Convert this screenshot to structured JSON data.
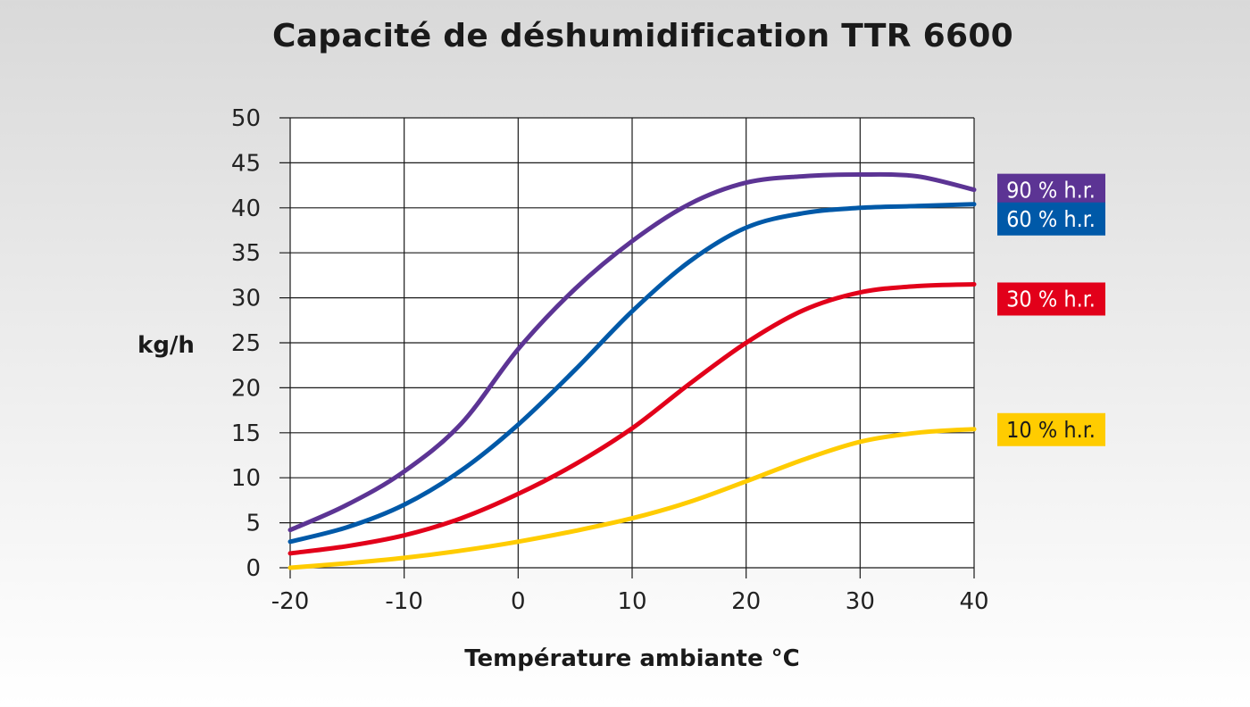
{
  "chart_data": {
    "type": "line",
    "title": "Capacité de déshumidification TTR 6600",
    "xlabel": "Température ambiante °C",
    "ylabel": "kg/h",
    "xlim": [
      -20,
      40
    ],
    "ylim": [
      0,
      50
    ],
    "x_ticks": [
      "-20",
      "-10",
      "0",
      "10",
      "20",
      "30",
      "40"
    ],
    "y_ticks": [
      "0",
      "5",
      "10",
      "15",
      "20",
      "25",
      "30",
      "35",
      "40",
      "45",
      "50"
    ],
    "grid": true,
    "legend_position": "right",
    "series": [
      {
        "name": "90 % h.r.",
        "color": "#5c3494",
        "x": [
          -20,
          -15,
          -10,
          -5,
          0,
          5,
          10,
          15,
          20,
          25,
          30,
          35,
          40
        ],
        "y": [
          4.2,
          7,
          10.7,
          16,
          24.3,
          31,
          36.3,
          40.4,
          42.8,
          43.5,
          43.7,
          43.5,
          42
        ]
      },
      {
        "name": "60 % h.r.",
        "color": "#0059a8",
        "x": [
          -20,
          -15,
          -10,
          -5,
          0,
          5,
          10,
          15,
          20,
          25,
          30,
          35,
          40
        ],
        "y": [
          2.9,
          4.5,
          7,
          10.8,
          15.9,
          22,
          28.5,
          34,
          37.8,
          39.4,
          40,
          40.2,
          40.4
        ]
      },
      {
        "name": "30 % h.r.",
        "color": "#e2001a",
        "x": [
          -20,
          -15,
          -10,
          -5,
          0,
          5,
          10,
          15,
          20,
          25,
          30,
          35,
          40
        ],
        "y": [
          1.6,
          2.4,
          3.6,
          5.5,
          8.2,
          11.5,
          15.5,
          20.4,
          25,
          28.6,
          30.6,
          31.3,
          31.5
        ]
      },
      {
        "name": "10 % h.r.",
        "color": "#ffcc00",
        "x": [
          -20,
          -15,
          -10,
          -5,
          0,
          5,
          10,
          15,
          20,
          25,
          30,
          35,
          40
        ],
        "y": [
          0,
          0.5,
          1.1,
          1.9,
          2.9,
          4.1,
          5.5,
          7.3,
          9.6,
          12,
          14,
          15,
          15.4
        ]
      }
    ]
  }
}
